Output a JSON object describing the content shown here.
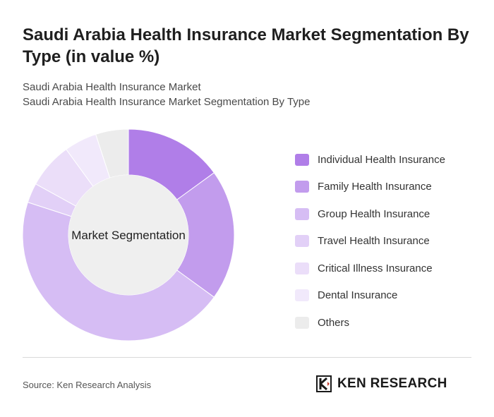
{
  "title": "Saudi Arabia Health Insurance Market Segmentation By Type (in value %)",
  "subtitle_lines": [
    "Saudi Arabia Health Insurance Market",
    "Saudi Arabia Health Insurance Market Segmentation By Type"
  ],
  "chart_data": {
    "type": "pie",
    "center_label": "Market Segmentation",
    "categories": [
      "Individual Health Insurance",
      "Family Health Insurance",
      "Group Health Insurance",
      "Travel Health Insurance",
      "Critical Illness Insurance",
      "Dental Insurance",
      "Others"
    ],
    "values": [
      15,
      20,
      45,
      3,
      7,
      5,
      5
    ],
    "colors": [
      "#b07ee8",
      "#c29ced",
      "#d6bdf4",
      "#e2d0f7",
      "#ebdef9",
      "#f1e9fb",
      "#ececec"
    ],
    "legend_position": "right"
  },
  "source": "Source: Ken Research Analysis",
  "brand": {
    "name": "KEN RESEARCH",
    "logo_icon": "ken-logo-icon"
  }
}
